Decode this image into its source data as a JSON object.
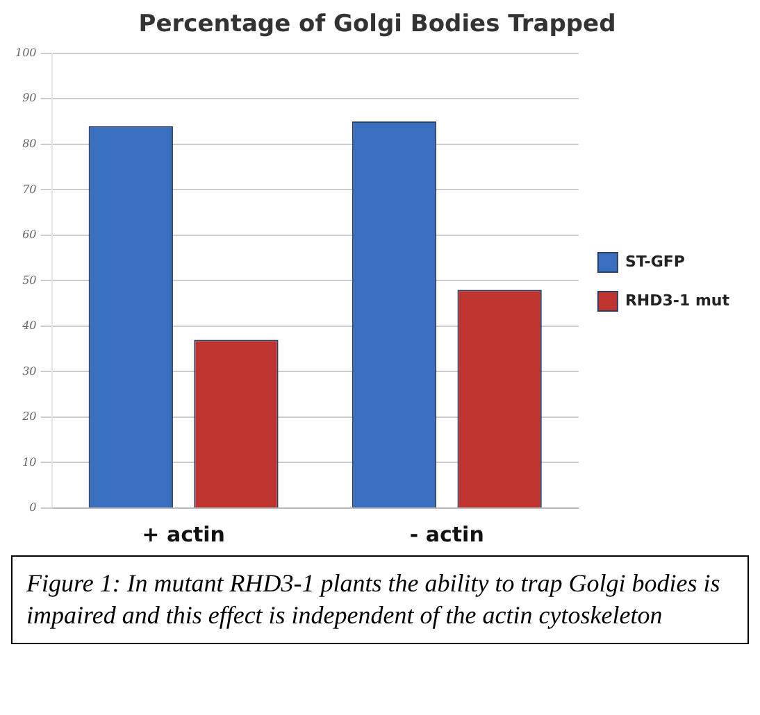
{
  "chart_data": {
    "type": "bar",
    "title": "Percentage of Golgi Bodies Trapped",
    "categories": [
      "+ actin",
      "- actin"
    ],
    "series": [
      {
        "name": "ST-GFP",
        "color": "#3a6fbf",
        "values": [
          84,
          85
        ]
      },
      {
        "name": "RHD3-1 mut",
        "color": "#c0342f",
        "values": [
          37,
          48
        ]
      }
    ],
    "ylim": [
      0,
      100
    ],
    "yticks": [
      0,
      10,
      20,
      30,
      40,
      50,
      60,
      70,
      80,
      90,
      100
    ],
    "grid": "y",
    "legend": "right",
    "annotations": [
      "Figure 1: In mutant RHD3-1 plants the ability to trap Golgi bodies is impaired and this effect is independent of the actin cytoskeleton"
    ]
  }
}
